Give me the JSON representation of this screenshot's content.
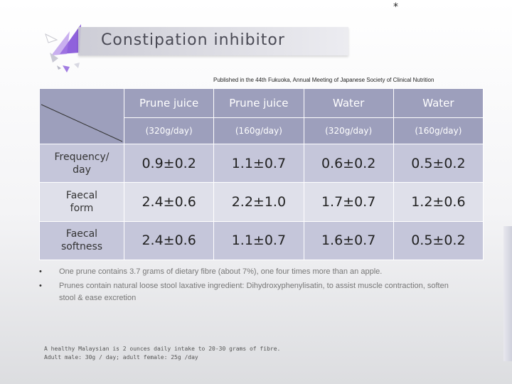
{
  "slide": {
    "asterisk": "*",
    "title": "Constipation inhibitor",
    "published": "Published in the 44th Fukuoka, Annual Meeting of Japanese Society of Clinical Nutrition"
  },
  "table": {
    "columns": [
      {
        "name": "Prune juice",
        "unit": "(320g/day)"
      },
      {
        "name": "Prune juice",
        "unit": "(160g/day)"
      },
      {
        "name": "Water",
        "unit": "(320g/day)"
      },
      {
        "name": "Water",
        "unit": "(160g/day)"
      }
    ],
    "rows": [
      {
        "label_line1": "Frequency/",
        "label_line2": "day",
        "values": [
          "0.9±0.2",
          "1.1±0.7",
          "0.6±0.2",
          "0.5±0.2"
        ]
      },
      {
        "label_line1": "Faecal",
        "label_line2": "form",
        "values": [
          "2.4±0.6",
          "2.2±1.0",
          "1.7±0.7",
          "1.2±0.6"
        ]
      },
      {
        "label_line1": "Faecal",
        "label_line2": "softness",
        "values": [
          "2.4±0.6",
          "1.1±0.7",
          "1.6±0.7",
          "0.5±0.2"
        ]
      }
    ]
  },
  "bullets": [
    {
      "marker": "•",
      "text": "One prune contains 3.7 grams of dietary fibre (about 7%), one four times more than an apple."
    },
    {
      "marker": "•",
      "text": "Prunes contain natural loose stool laxative ingredient: Dihydroxyphenylisatin, to assist muscle contraction, soften stool & ease excretion"
    }
  ],
  "note": {
    "line1": "A healthy Malaysian is 2 ounces daily intake to 20-30 grams of fibre.",
    "line2": "Adult male: 30g / day; adult female: 25g /day"
  }
}
